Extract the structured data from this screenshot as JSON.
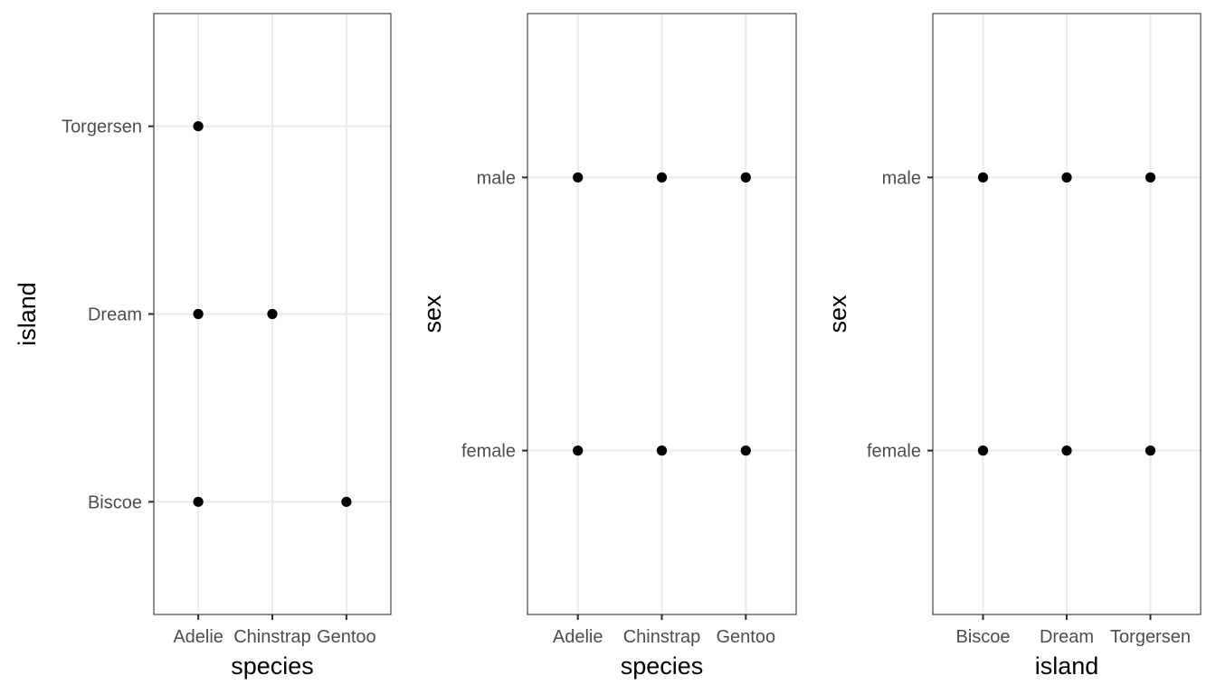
{
  "chart_data": [
    {
      "type": "scatter",
      "x_categories": [
        "Adelie",
        "Chinstrap",
        "Gentoo"
      ],
      "y_categories": [
        "Biscoe",
        "Dream",
        "Torgersen"
      ],
      "points": [
        {
          "x": "Adelie",
          "y": "Torgersen"
        },
        {
          "x": "Adelie",
          "y": "Dream"
        },
        {
          "x": "Chinstrap",
          "y": "Dream"
        },
        {
          "x": "Adelie",
          "y": "Biscoe"
        },
        {
          "x": "Gentoo",
          "y": "Biscoe"
        }
      ],
      "xlabel": "species",
      "ylabel": "island",
      "grid": true,
      "legend": "none"
    },
    {
      "type": "scatter",
      "x_categories": [
        "Adelie",
        "Chinstrap",
        "Gentoo"
      ],
      "y_categories": [
        "female",
        "male"
      ],
      "points": [
        {
          "x": "Adelie",
          "y": "male"
        },
        {
          "x": "Chinstrap",
          "y": "male"
        },
        {
          "x": "Gentoo",
          "y": "male"
        },
        {
          "x": "Adelie",
          "y": "female"
        },
        {
          "x": "Chinstrap",
          "y": "female"
        },
        {
          "x": "Gentoo",
          "y": "female"
        }
      ],
      "xlabel": "species",
      "ylabel": "sex",
      "grid": true,
      "legend": "none"
    },
    {
      "type": "scatter",
      "x_categories": [
        "Biscoe",
        "Dream",
        "Torgersen"
      ],
      "y_categories": [
        "female",
        "male"
      ],
      "points": [
        {
          "x": "Biscoe",
          "y": "male"
        },
        {
          "x": "Dream",
          "y": "male"
        },
        {
          "x": "Torgersen",
          "y": "male"
        },
        {
          "x": "Biscoe",
          "y": "female"
        },
        {
          "x": "Dream",
          "y": "female"
        },
        {
          "x": "Torgersen",
          "y": "female"
        }
      ],
      "xlabel": "island",
      "ylabel": "sex",
      "grid": true,
      "legend": "none"
    }
  ]
}
